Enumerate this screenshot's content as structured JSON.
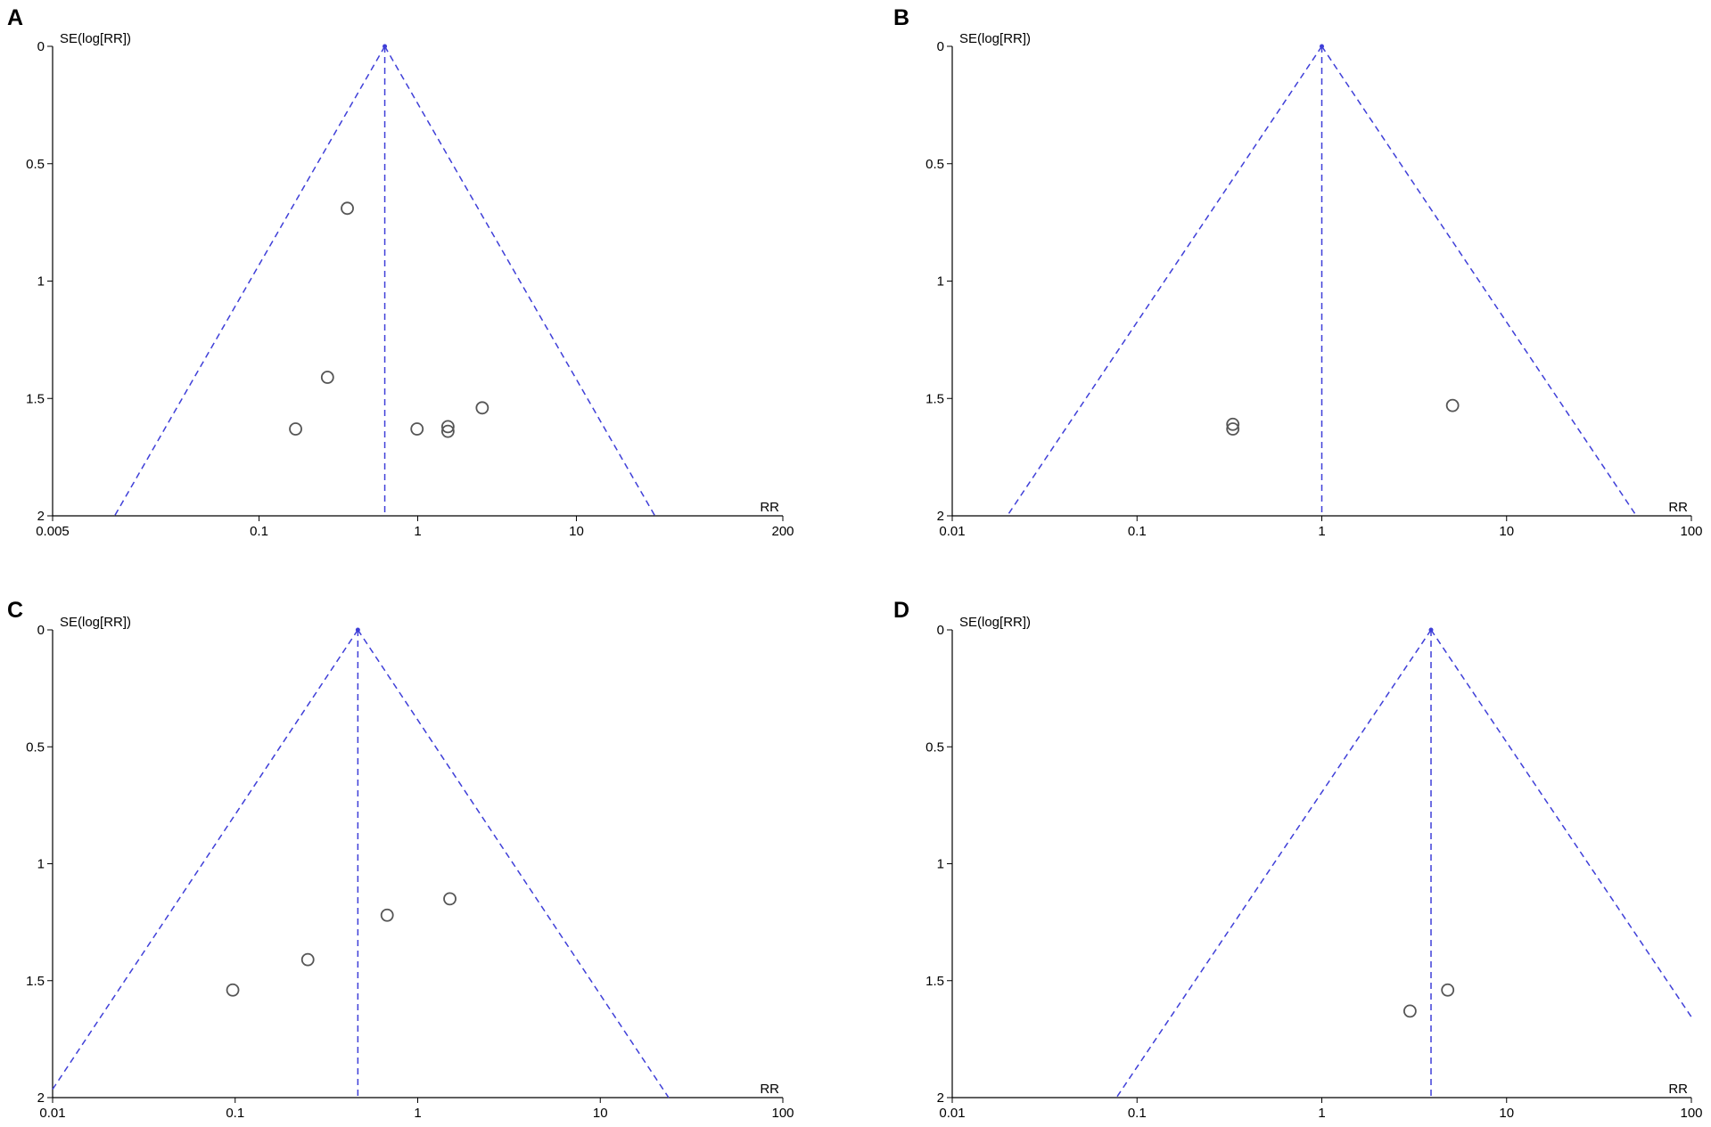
{
  "figure": {
    "colors": {
      "funnel": "#3f3fd8",
      "point_stroke": "#555555",
      "axis": "#000000"
    }
  },
  "chart_data": [
    {
      "panel": "A",
      "type": "scatter",
      "xlabel": "RR",
      "ylabel": "SE(log[RR])",
      "x_scale": "log",
      "xlim": [
        0.005,
        200
      ],
      "ylim": [
        0,
        2
      ],
      "y_reversed": true,
      "x_ticks": [
        0.005,
        0.1,
        1,
        10,
        200
      ],
      "x_tick_labels": [
        "0.005",
        "0.1",
        "1",
        "10",
        "200"
      ],
      "y_ticks": [
        0,
        0.5,
        1,
        1.5,
        2
      ],
      "y_tick_labels": [
        "0",
        "0.5",
        "1",
        "1.5",
        "2"
      ],
      "pooled_rr": 0.62,
      "funnel": "pseudo 95% confidence limits",
      "points": [
        {
          "x": 0.36,
          "y": 0.69
        },
        {
          "x": 0.27,
          "y": 1.41
        },
        {
          "x": 0.17,
          "y": 1.63
        },
        {
          "x": 0.99,
          "y": 1.63
        },
        {
          "x": 1.55,
          "y": 1.62
        },
        {
          "x": 1.55,
          "y": 1.64
        },
        {
          "x": 2.55,
          "y": 1.54
        }
      ]
    },
    {
      "panel": "B",
      "type": "scatter",
      "xlabel": "RR",
      "ylabel": "SE(log[RR])",
      "x_scale": "log",
      "xlim": [
        0.01,
        100
      ],
      "ylim": [
        0,
        2
      ],
      "y_reversed": true,
      "x_ticks": [
        0.01,
        0.1,
        1,
        10,
        100
      ],
      "x_tick_labels": [
        "0.01",
        "0.1",
        "1",
        "10",
        "100"
      ],
      "y_ticks": [
        0,
        0.5,
        1,
        1.5,
        2
      ],
      "y_tick_labels": [
        "0",
        "0.5",
        "1",
        "1.5",
        "2"
      ],
      "pooled_rr": 1.0,
      "funnel": "pseudo 95% confidence limits",
      "points": [
        {
          "x": 0.33,
          "y": 1.61
        },
        {
          "x": 0.33,
          "y": 1.63
        },
        {
          "x": 5.1,
          "y": 1.53
        }
      ]
    },
    {
      "panel": "C",
      "type": "scatter",
      "xlabel": "RR",
      "ylabel": "SE(log[RR])",
      "x_scale": "log",
      "xlim": [
        0.01,
        100
      ],
      "ylim": [
        0,
        2
      ],
      "y_reversed": true,
      "x_ticks": [
        0.01,
        0.1,
        1,
        10,
        100
      ],
      "x_tick_labels": [
        "0.01",
        "0.1",
        "1",
        "10",
        "100"
      ],
      "y_ticks": [
        0,
        0.5,
        1,
        1.5,
        2
      ],
      "y_tick_labels": [
        "0",
        "0.5",
        "1",
        "1.5",
        "2"
      ],
      "pooled_rr": 0.47,
      "funnel": "pseudo 95% confidence limits",
      "points": [
        {
          "x": 0.097,
          "y": 1.54
        },
        {
          "x": 0.25,
          "y": 1.41
        },
        {
          "x": 0.68,
          "y": 1.22
        },
        {
          "x": 1.5,
          "y": 1.15
        }
      ]
    },
    {
      "panel": "D",
      "type": "scatter",
      "xlabel": "RR",
      "ylabel": "SE(log[RR])",
      "x_scale": "log",
      "xlim": [
        0.01,
        100
      ],
      "ylim": [
        0,
        2
      ],
      "y_reversed": true,
      "x_ticks": [
        0.01,
        0.1,
        1,
        10,
        100
      ],
      "x_tick_labels": [
        "0.01",
        "0.1",
        "1",
        "10",
        "100"
      ],
      "y_ticks": [
        0,
        0.5,
        1,
        1.5,
        2
      ],
      "y_tick_labels": [
        "0",
        "0.5",
        "1",
        "1.5",
        "2"
      ],
      "pooled_rr": 3.9,
      "funnel": "pseudo 95% confidence limits",
      "points": [
        {
          "x": 3.0,
          "y": 1.63
        },
        {
          "x": 4.8,
          "y": 1.54
        }
      ]
    }
  ]
}
